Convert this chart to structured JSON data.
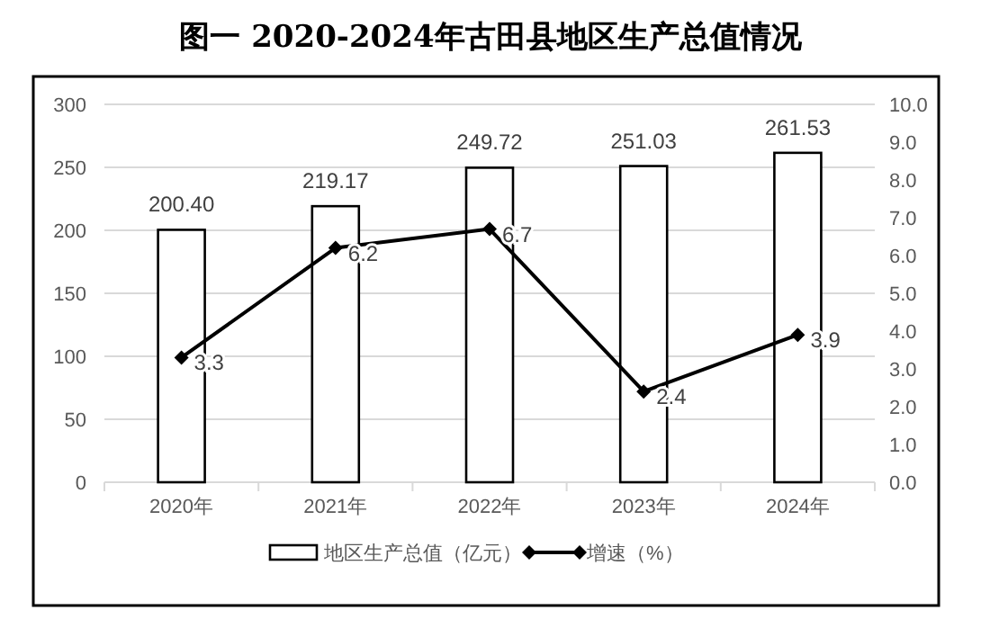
{
  "chart_data": {
    "type": "bar",
    "title": "图一  2020-2024年古田县地区生产总值情况",
    "categories": [
      "2020年",
      "2021年",
      "2022年",
      "2023年",
      "2024年"
    ],
    "series": [
      {
        "name": "地区生产总值（亿元）",
        "color": "#ffffff",
        "values": [
          200.4,
          219.17,
          249.72,
          251.03,
          261.53
        ],
        "value_labels": [
          "200.40",
          "219.17",
          "249.72",
          "251.03",
          "261.53"
        ]
      },
      {
        "name": "增速（%）",
        "type": "line",
        "axis": "y2",
        "color": "#000000",
        "marker": "diamond",
        "values": [
          3.3,
          6.2,
          6.7,
          2.4,
          3.9
        ],
        "value_labels": [
          "3.3",
          "6.2",
          "6.7",
          "2.4",
          "3.9"
        ]
      }
    ],
    "ylim": [
      0,
      300
    ],
    "yticks": [
      0,
      50,
      100,
      150,
      200,
      250,
      300
    ],
    "y2lim": [
      0,
      10
    ],
    "y2ticks": [
      {
        "value": 0,
        "label": "0.0"
      },
      {
        "value": 1,
        "label": "1.0"
      },
      {
        "value": 2,
        "label": "2.0"
      },
      {
        "value": 3,
        "label": "3.0"
      },
      {
        "value": 4,
        "label": "4.0"
      },
      {
        "value": 5,
        "label": "5.0"
      },
      {
        "value": 6,
        "label": "6.0"
      },
      {
        "value": 7,
        "label": "7.0"
      },
      {
        "value": 8,
        "label": "8.0"
      },
      {
        "value": 9,
        "label": "9.0"
      },
      {
        "value": 10,
        "label": "10.0"
      }
    ],
    "grid": "y",
    "legend": "bottom"
  }
}
